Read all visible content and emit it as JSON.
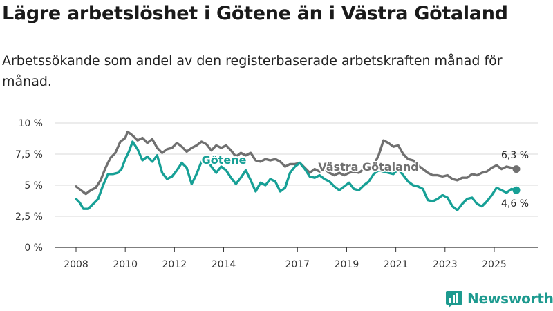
{
  "title": "Lägre arbetslöshet i Götene än i Västra Götaland",
  "subtitle": "Arbetssökande som andel av den registerbaserade arbetskraften månad för månad.",
  "brand": "Newsworthy",
  "colors": {
    "gotene": "#17a096",
    "vastra": "#707070",
    "grid": "#d9d9d9",
    "text": "#1a1a1a",
    "brand": "#1d9a8f"
  },
  "chart_data": {
    "type": "line",
    "title": "Lägre arbetslöshet i Götene än i Västra Götaland",
    "xlabel": "",
    "ylabel": "",
    "xlim": [
      2008.0,
      2025.9
    ],
    "ylim": [
      0,
      10
    ],
    "y_ticks": [
      {
        "value": 0,
        "label": "0 %"
      },
      {
        "value": 2.5,
        "label": "2,5 %"
      },
      {
        "value": 5,
        "label": "5 %"
      },
      {
        "value": 7.5,
        "label": "7,5 %"
      },
      {
        "value": 10,
        "label": "10 %"
      }
    ],
    "x_ticks": [
      {
        "value": 2008,
        "label": "2008"
      },
      {
        "value": 2010,
        "label": "2010"
      },
      {
        "value": 2012,
        "label": "2012"
      },
      {
        "value": 2014,
        "label": "2014"
      },
      {
        "value": 2017,
        "label": "2017"
      },
      {
        "value": 2019,
        "label": "2019"
      },
      {
        "value": 2021,
        "label": "2021"
      },
      {
        "value": 2023,
        "label": "2023"
      },
      {
        "value": 2025,
        "label": "2025"
      }
    ],
    "grid": true,
    "series": [
      {
        "name": "Västra Götaland",
        "label": "Västra Götaland",
        "end_label": "6,3 %",
        "points": [
          [
            2008.0,
            4.9
          ],
          [
            2008.2,
            4.6
          ],
          [
            2008.4,
            4.3
          ],
          [
            2008.6,
            4.6
          ],
          [
            2008.8,
            4.8
          ],
          [
            2009.0,
            5.4
          ],
          [
            2009.2,
            6.4
          ],
          [
            2009.4,
            7.2
          ],
          [
            2009.6,
            7.6
          ],
          [
            2009.8,
            8.5
          ],
          [
            2010.0,
            8.8
          ],
          [
            2010.1,
            9.3
          ],
          [
            2010.3,
            9.0
          ],
          [
            2010.5,
            8.6
          ],
          [
            2010.7,
            8.8
          ],
          [
            2010.9,
            8.4
          ],
          [
            2011.1,
            8.7
          ],
          [
            2011.3,
            8.0
          ],
          [
            2011.5,
            7.6
          ],
          [
            2011.7,
            7.9
          ],
          [
            2011.9,
            8.0
          ],
          [
            2012.1,
            8.4
          ],
          [
            2012.3,
            8.1
          ],
          [
            2012.5,
            7.7
          ],
          [
            2012.7,
            8.0
          ],
          [
            2012.9,
            8.2
          ],
          [
            2013.1,
            8.5
          ],
          [
            2013.3,
            8.3
          ],
          [
            2013.5,
            7.8
          ],
          [
            2013.7,
            8.2
          ],
          [
            2013.9,
            8.0
          ],
          [
            2014.1,
            8.2
          ],
          [
            2014.3,
            7.8
          ],
          [
            2014.5,
            7.3
          ],
          [
            2014.7,
            7.6
          ],
          [
            2014.9,
            7.4
          ],
          [
            2015.1,
            7.6
          ],
          [
            2015.3,
            7.0
          ],
          [
            2015.5,
            6.9
          ],
          [
            2015.7,
            7.1
          ],
          [
            2015.9,
            7.0
          ],
          [
            2016.1,
            7.1
          ],
          [
            2016.3,
            6.9
          ],
          [
            2016.5,
            6.5
          ],
          [
            2016.7,
            6.7
          ],
          [
            2016.9,
            6.7
          ],
          [
            2017.1,
            6.8
          ],
          [
            2017.3,
            6.4
          ],
          [
            2017.5,
            6.0
          ],
          [
            2017.7,
            6.3
          ],
          [
            2017.9,
            6.1
          ],
          [
            2018.1,
            6.3
          ],
          [
            2018.3,
            6.0
          ],
          [
            2018.5,
            5.8
          ],
          [
            2018.7,
            6.0
          ],
          [
            2018.9,
            5.8
          ],
          [
            2019.1,
            6.0
          ],
          [
            2019.3,
            6.1
          ],
          [
            2019.5,
            6.0
          ],
          [
            2019.7,
            6.3
          ],
          [
            2019.9,
            6.3
          ],
          [
            2020.1,
            6.6
          ],
          [
            2020.3,
            7.4
          ],
          [
            2020.5,
            8.6
          ],
          [
            2020.7,
            8.4
          ],
          [
            2020.9,
            8.1
          ],
          [
            2021.1,
            8.2
          ],
          [
            2021.3,
            7.5
          ],
          [
            2021.5,
            7.1
          ],
          [
            2021.7,
            7.0
          ],
          [
            2021.9,
            6.6
          ],
          [
            2022.1,
            6.3
          ],
          [
            2022.3,
            6.0
          ],
          [
            2022.5,
            5.8
          ],
          [
            2022.7,
            5.8
          ],
          [
            2022.9,
            5.7
          ],
          [
            2023.1,
            5.8
          ],
          [
            2023.3,
            5.5
          ],
          [
            2023.5,
            5.4
          ],
          [
            2023.7,
            5.6
          ],
          [
            2023.9,
            5.6
          ],
          [
            2024.1,
            5.9
          ],
          [
            2024.3,
            5.8
          ],
          [
            2024.5,
            6.0
          ],
          [
            2024.7,
            6.1
          ],
          [
            2024.9,
            6.4
          ],
          [
            2025.1,
            6.6
          ],
          [
            2025.3,
            6.3
          ],
          [
            2025.5,
            6.5
          ],
          [
            2025.7,
            6.4
          ],
          [
            2025.9,
            6.3
          ]
        ]
      },
      {
        "name": "Götene",
        "label": "Götene",
        "end_label": "4,6 %",
        "points": [
          [
            2008.0,
            3.9
          ],
          [
            2008.15,
            3.6
          ],
          [
            2008.3,
            3.1
          ],
          [
            2008.5,
            3.1
          ],
          [
            2008.7,
            3.5
          ],
          [
            2008.9,
            3.9
          ],
          [
            2009.1,
            5.0
          ],
          [
            2009.3,
            5.9
          ],
          [
            2009.5,
            5.9
          ],
          [
            2009.7,
            6.0
          ],
          [
            2009.85,
            6.3
          ],
          [
            2010.0,
            7.1
          ],
          [
            2010.15,
            7.7
          ],
          [
            2010.3,
            8.5
          ],
          [
            2010.5,
            7.9
          ],
          [
            2010.7,
            7.0
          ],
          [
            2010.9,
            7.3
          ],
          [
            2011.1,
            6.9
          ],
          [
            2011.3,
            7.4
          ],
          [
            2011.5,
            6.0
          ],
          [
            2011.7,
            5.5
          ],
          [
            2011.9,
            5.7
          ],
          [
            2012.1,
            6.2
          ],
          [
            2012.3,
            6.8
          ],
          [
            2012.5,
            6.4
          ],
          [
            2012.7,
            5.1
          ],
          [
            2012.9,
            5.9
          ],
          [
            2013.1,
            6.9
          ],
          [
            2013.3,
            7.3
          ],
          [
            2013.5,
            6.5
          ],
          [
            2013.7,
            6.0
          ],
          [
            2013.9,
            6.5
          ],
          [
            2014.1,
            6.2
          ],
          [
            2014.3,
            5.6
          ],
          [
            2014.5,
            5.1
          ],
          [
            2014.7,
            5.6
          ],
          [
            2014.9,
            6.2
          ],
          [
            2015.1,
            5.4
          ],
          [
            2015.3,
            4.5
          ],
          [
            2015.5,
            5.2
          ],
          [
            2015.7,
            5.0
          ],
          [
            2015.9,
            5.5
          ],
          [
            2016.1,
            5.3
          ],
          [
            2016.3,
            4.5
          ],
          [
            2016.5,
            4.8
          ],
          [
            2016.7,
            6.0
          ],
          [
            2016.9,
            6.5
          ],
          [
            2017.1,
            6.8
          ],
          [
            2017.3,
            6.3
          ],
          [
            2017.5,
            5.7
          ],
          [
            2017.7,
            5.6
          ],
          [
            2017.9,
            5.8
          ],
          [
            2018.1,
            5.5
          ],
          [
            2018.3,
            5.3
          ],
          [
            2018.5,
            4.9
          ],
          [
            2018.7,
            4.6
          ],
          [
            2018.9,
            4.9
          ],
          [
            2019.1,
            5.2
          ],
          [
            2019.3,
            4.7
          ],
          [
            2019.5,
            4.6
          ],
          [
            2019.7,
            5.0
          ],
          [
            2019.9,
            5.3
          ],
          [
            2020.1,
            5.9
          ],
          [
            2020.3,
            6.2
          ],
          [
            2020.5,
            6.1
          ],
          [
            2020.7,
            6.0
          ],
          [
            2020.9,
            5.9
          ],
          [
            2021.1,
            6.3
          ],
          [
            2021.3,
            5.8
          ],
          [
            2021.5,
            5.3
          ],
          [
            2021.7,
            5.0
          ],
          [
            2021.9,
            4.9
          ],
          [
            2022.1,
            4.7
          ],
          [
            2022.3,
            3.8
          ],
          [
            2022.5,
            3.7
          ],
          [
            2022.7,
            3.9
          ],
          [
            2022.9,
            4.2
          ],
          [
            2023.1,
            4.0
          ],
          [
            2023.3,
            3.3
          ],
          [
            2023.5,
            3.0
          ],
          [
            2023.7,
            3.5
          ],
          [
            2023.9,
            3.9
          ],
          [
            2024.1,
            4.0
          ],
          [
            2024.3,
            3.5
          ],
          [
            2024.5,
            3.3
          ],
          [
            2024.7,
            3.7
          ],
          [
            2024.9,
            4.2
          ],
          [
            2025.1,
            4.8
          ],
          [
            2025.3,
            4.6
          ],
          [
            2025.5,
            4.4
          ],
          [
            2025.7,
            4.7
          ],
          [
            2025.9,
            4.6
          ]
        ]
      }
    ]
  }
}
